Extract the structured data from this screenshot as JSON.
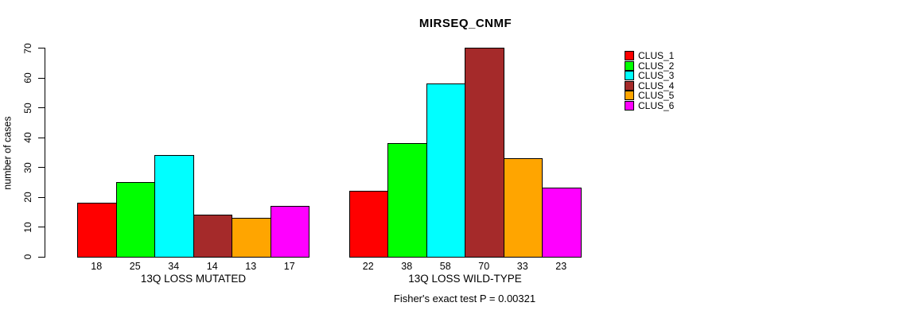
{
  "chart_data": {
    "type": "bar",
    "title": "MIRSEQ_CNMF",
    "ylabel": "number of cases",
    "xlabel": "",
    "ylim": [
      0,
      70
    ],
    "yticks": [
      0,
      10,
      20,
      30,
      40,
      50,
      60,
      70
    ],
    "grid": false,
    "legend_position": "right",
    "series": [
      "CLUS_1",
      "CLUS_2",
      "CLUS_3",
      "CLUS_4",
      "CLUS_5",
      "CLUS_6"
    ],
    "series_colors": [
      "#FF0000",
      "#00FF00",
      "#00FFFF",
      "#A52A2A",
      "#FFA500",
      "#FF00FF"
    ],
    "groups": [
      {
        "label": "13Q LOSS MUTATED",
        "values": [
          18,
          25,
          34,
          14,
          13,
          17
        ]
      },
      {
        "label": "13Q LOSS WILD-TYPE",
        "values": [
          22,
          38,
          58,
          70,
          33,
          23
        ]
      }
    ],
    "annotation": "Fisher's exact test P = 0.00321"
  }
}
